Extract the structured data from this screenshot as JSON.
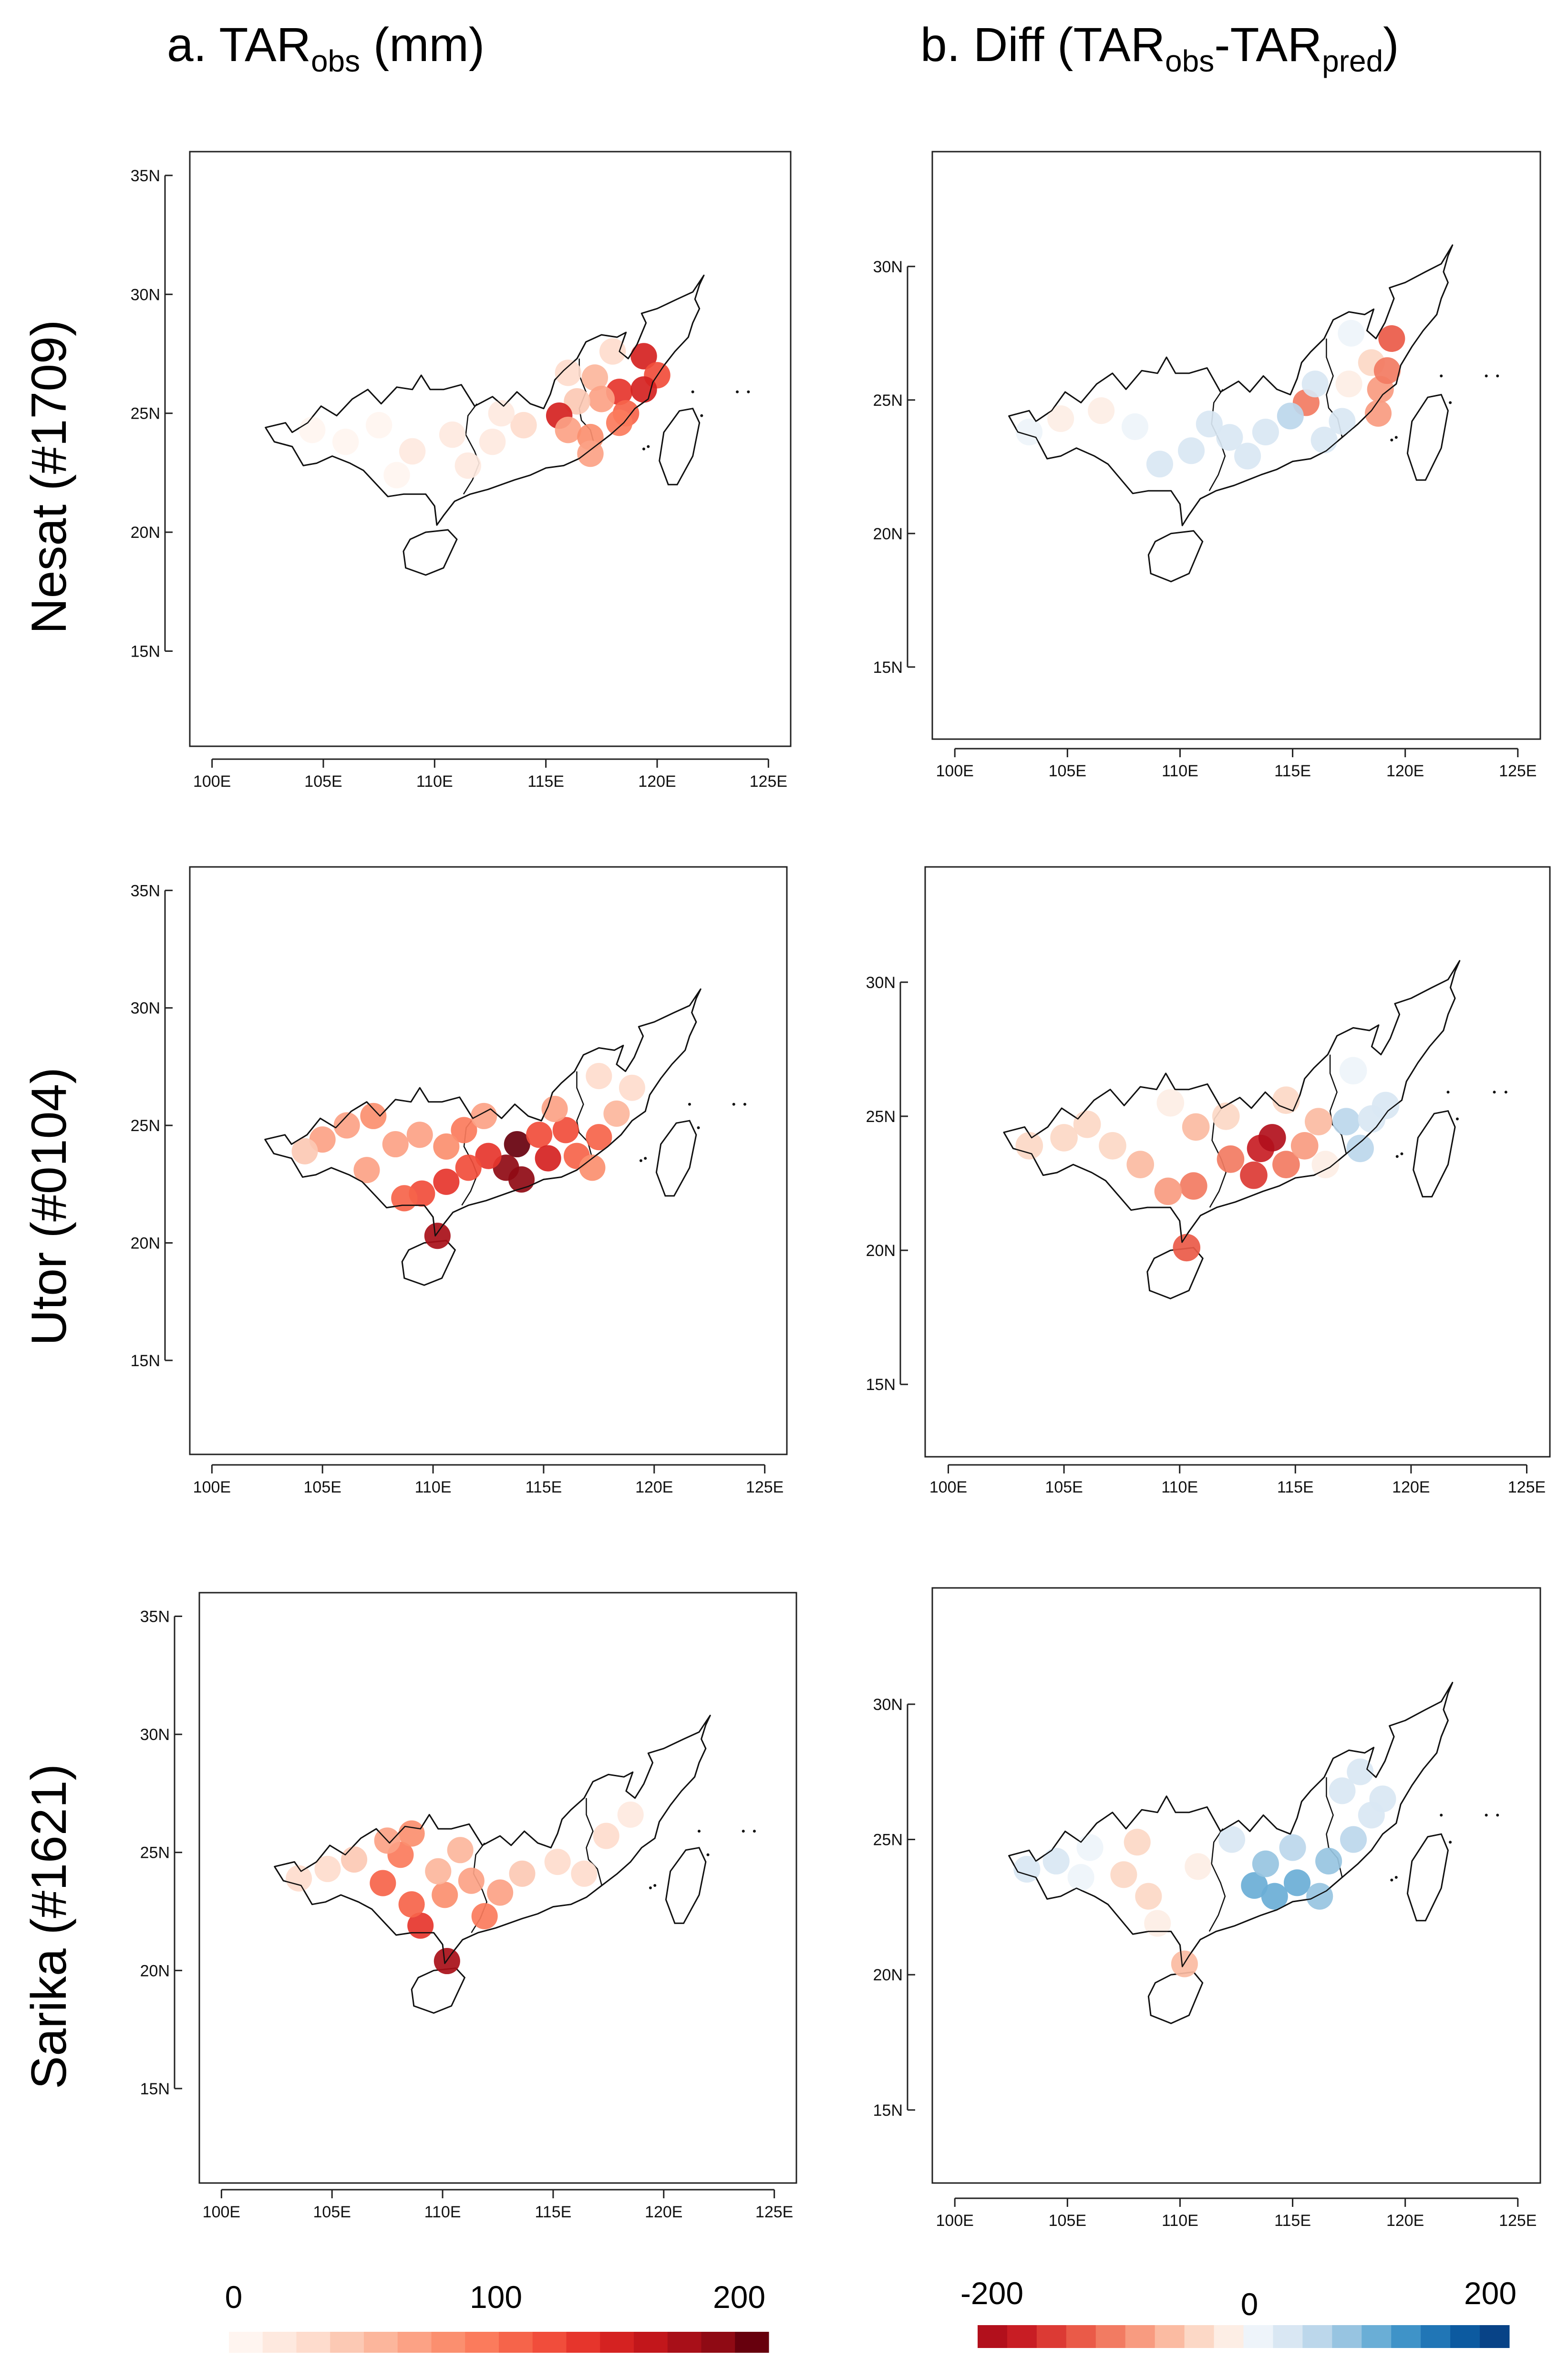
{
  "columns": {
    "a": {
      "prefix": "a. TAR",
      "sub": "obs",
      "suffix": " (mm)"
    },
    "b": {
      "prefix": "b. Diff (TAR",
      "sub1": "obs",
      "mid": "-TAR",
      "sub2": "pred",
      "suffix": ")"
    }
  },
  "rows": [
    {
      "label": "Nesat (#1709)"
    },
    {
      "label": "Utor (#0104)"
    },
    {
      "label": "Sarika (#1621)"
    }
  ],
  "axes": {
    "x_ticks": [
      "100E",
      "105E",
      "110E",
      "115E",
      "120E",
      "125E"
    ],
    "y_ticks_a": [
      "35N",
      "30N",
      "25N",
      "20N",
      "15N"
    ],
    "y_ticks_b": [
      "30N",
      "25N",
      "20N",
      "15N"
    ]
  },
  "legend_a": {
    "labels": [
      "0",
      "100",
      "200"
    ],
    "colors": [
      "#fff5f0",
      "#fee9df",
      "#fedccd",
      "#fcc9b4",
      "#fcb69c",
      "#fca285",
      "#fb8f6f",
      "#fb7b5c",
      "#f6644a",
      "#f14d3b",
      "#e6352c",
      "#d52221",
      "#c2161b",
      "#a80f18",
      "#8f0a14",
      "#67000d"
    ]
  },
  "legend_b": {
    "labels": [
      "-200",
      "0",
      "200"
    ],
    "colors": [
      "#b2101c",
      "#c81d24",
      "#dc3a34",
      "#ea5a48",
      "#f27b62",
      "#f89b80",
      "#fbbba2",
      "#fcd8c6",
      "#fdeee5",
      "#eef4fa",
      "#d9e7f3",
      "#bcd7eb",
      "#97c4e1",
      "#6aaed6",
      "#3f93c8",
      "#2176b6",
      "#0c5aa0",
      "#084387"
    ]
  },
  "chart_data": [
    {
      "panel": "a-nesat",
      "type": "scatter",
      "title": "a. TARobs (mm)",
      "row": "Nesat (#1709)",
      "xlim": [
        99,
        126
      ],
      "ylim": [
        11,
        36
      ],
      "points": [
        [
          119.4,
          27.4,
          140
        ],
        [
          120.0,
          26.6,
          120
        ],
        [
          118.3,
          25.9,
          130
        ],
        [
          119.4,
          26.0,
          140
        ],
        [
          118.6,
          25.0,
          110
        ],
        [
          117.2,
          26.5,
          50
        ],
        [
          117.5,
          25.6,
          60
        ],
        [
          116.4,
          25.5,
          40
        ],
        [
          115.6,
          24.9,
          140
        ],
        [
          116.0,
          24.3,
          60
        ],
        [
          117.0,
          24.0,
          80
        ],
        [
          118.3,
          24.6,
          90
        ],
        [
          117.0,
          23.3,
          70
        ],
        [
          114.0,
          24.5,
          20
        ],
        [
          112.6,
          23.8,
          15
        ],
        [
          110.8,
          24.1,
          10
        ],
        [
          109.0,
          23.4,
          8
        ],
        [
          107.5,
          24.5,
          6
        ],
        [
          106.0,
          23.8,
          6
        ],
        [
          104.5,
          24.3,
          5
        ],
        [
          113.0,
          25.0,
          12
        ],
        [
          111.5,
          22.8,
          8
        ],
        [
          108.3,
          22.4,
          5
        ],
        [
          116.0,
          26.7,
          30
        ],
        [
          118.0,
          27.6,
          25
        ]
      ]
    },
    {
      "panel": "b-nesat",
      "type": "scatter",
      "title": "b. Diff (TARobs-TARpred)",
      "row": "Nesat (#1709)",
      "xlim": [
        99,
        126
      ],
      "ylim": [
        12.3,
        34.3
      ],
      "points": [
        [
          119.4,
          27.3,
          -120
        ],
        [
          118.5,
          26.4,
          -40
        ],
        [
          117.5,
          25.6,
          -20
        ],
        [
          118.9,
          25.4,
          -80
        ],
        [
          119.2,
          26.1,
          -110
        ],
        [
          118.8,
          24.5,
          -90
        ],
        [
          115.6,
          24.9,
          -110
        ],
        [
          114.9,
          24.4,
          50
        ],
        [
          113.8,
          23.8,
          40
        ],
        [
          113.0,
          22.9,
          45
        ],
        [
          112.2,
          23.6,
          35
        ],
        [
          111.3,
          24.1,
          30
        ],
        [
          110.5,
          23.1,
          25
        ],
        [
          109.1,
          22.6,
          30
        ],
        [
          108.0,
          24.0,
          20
        ],
        [
          106.5,
          24.6,
          -20
        ],
        [
          104.7,
          24.3,
          -15
        ],
        [
          103.3,
          23.8,
          10
        ],
        [
          116.4,
          23.5,
          40
        ],
        [
          117.2,
          24.2,
          30
        ],
        [
          117.6,
          27.5,
          20
        ],
        [
          116.0,
          25.6,
          25
        ]
      ]
    },
    {
      "panel": "a-utor",
      "type": "scatter",
      "title": "a. TARobs (mm)",
      "row": "Utor (#0104)",
      "xlim": [
        99,
        126
      ],
      "ylim": [
        11,
        36
      ],
      "points": [
        [
          113.8,
          24.2,
          200
        ],
        [
          113.3,
          23.2,
          180
        ],
        [
          114.0,
          22.7,
          190
        ],
        [
          112.5,
          23.7,
          130
        ],
        [
          114.8,
          24.6,
          120
        ],
        [
          116.0,
          24.8,
          120
        ],
        [
          115.2,
          23.6,
          140
        ],
        [
          116.5,
          23.7,
          110
        ],
        [
          111.6,
          23.2,
          120
        ],
        [
          110.6,
          22.6,
          130
        ],
        [
          109.5,
          22.1,
          120
        ],
        [
          108.7,
          21.9,
          110
        ],
        [
          110.2,
          20.3,
          170
        ],
        [
          111.4,
          24.8,
          90
        ],
        [
          110.6,
          24.1,
          80
        ],
        [
          109.4,
          24.6,
          60
        ],
        [
          108.3,
          24.2,
          70
        ],
        [
          107.3,
          25.4,
          80
        ],
        [
          106.1,
          25.0,
          70
        ],
        [
          105.0,
          24.4,
          60
        ],
        [
          104.2,
          23.9,
          40
        ],
        [
          107.0,
          23.1,
          70
        ],
        [
          117.5,
          24.5,
          100
        ],
        [
          117.2,
          23.2,
          80
        ],
        [
          118.3,
          25.5,
          50
        ],
        [
          119.0,
          26.6,
          30
        ],
        [
          117.5,
          27.1,
          20
        ],
        [
          115.5,
          25.7,
          70
        ],
        [
          112.3,
          25.4,
          60
        ]
      ]
    },
    {
      "panel": "b-utor",
      "type": "scatter",
      "title": "b. Diff (TARobs-TARpred)",
      "row": "Utor (#0104)",
      "xlim": [
        99,
        126
      ],
      "ylim": [
        12.3,
        34.3
      ],
      "points": [
        [
          113.5,
          23.8,
          -180
        ],
        [
          114.0,
          24.2,
          -200
        ],
        [
          113.2,
          22.8,
          -150
        ],
        [
          112.2,
          23.4,
          -110
        ],
        [
          114.6,
          23.2,
          -100
        ],
        [
          115.4,
          23.9,
          -80
        ],
        [
          116.0,
          24.8,
          -60
        ],
        [
          110.3,
          20.1,
          -140
        ],
        [
          110.6,
          22.4,
          -110
        ],
        [
          109.5,
          22.2,
          -90
        ],
        [
          108.3,
          23.2,
          -60
        ],
        [
          107.1,
          23.9,
          -40
        ],
        [
          106.0,
          24.7,
          -30
        ],
        [
          105.0,
          24.2,
          -30
        ],
        [
          103.5,
          23.9,
          -40
        ],
        [
          110.7,
          24.6,
          -50
        ],
        [
          112.0,
          25.0,
          -30
        ],
        [
          109.6,
          25.5,
          -20
        ],
        [
          117.2,
          24.8,
          50
        ],
        [
          117.8,
          23.8,
          60
        ],
        [
          118.3,
          24.9,
          40
        ],
        [
          118.9,
          25.4,
          30
        ],
        [
          117.5,
          26.7,
          20
        ],
        [
          116.3,
          23.2,
          -20
        ],
        [
          114.6,
          25.6,
          -40
        ]
      ]
    },
    {
      "panel": "a-sarika",
      "type": "scatter",
      "title": "a. TARobs (mm)",
      "row": "Sarika (#1621)",
      "xlim": [
        99,
        126
      ],
      "ylim": [
        11,
        36
      ],
      "points": [
        [
          110.2,
          20.4,
          170
        ],
        [
          109.0,
          21.9,
          130
        ],
        [
          108.6,
          22.8,
          110
        ],
        [
          107.3,
          23.7,
          100
        ],
        [
          108.1,
          24.9,
          90
        ],
        [
          108.6,
          25.8,
          80
        ],
        [
          107.5,
          25.5,
          70
        ],
        [
          110.1,
          23.2,
          80
        ],
        [
          111.3,
          23.8,
          70
        ],
        [
          111.9,
          22.3,
          90
        ],
        [
          112.6,
          23.3,
          60
        ],
        [
          109.8,
          24.2,
          50
        ],
        [
          106.0,
          24.7,
          40
        ],
        [
          104.8,
          24.3,
          30
        ],
        [
          103.5,
          23.9,
          20
        ],
        [
          113.6,
          24.1,
          40
        ],
        [
          115.2,
          24.6,
          30
        ],
        [
          116.4,
          24.1,
          25
        ],
        [
          117.4,
          25.7,
          20
        ],
        [
          118.5,
          26.6,
          15
        ],
        [
          110.8,
          25.1,
          50
        ]
      ]
    },
    {
      "panel": "b-sarika",
      "type": "scatter",
      "title": "b. Diff (TARobs-TARpred)",
      "row": "Sarika (#1621)",
      "xlim": [
        99,
        126
      ],
      "ylim": [
        12.3,
        34.3
      ],
      "points": [
        [
          110.2,
          20.4,
          -60
        ],
        [
          109.0,
          21.9,
          -20
        ],
        [
          108.6,
          22.9,
          -40
        ],
        [
          107.5,
          23.7,
          -30
        ],
        [
          108.1,
          24.9,
          -40
        ],
        [
          106.0,
          24.7,
          20
        ],
        [
          104.5,
          24.2,
          30
        ],
        [
          103.2,
          23.9,
          40
        ],
        [
          113.3,
          23.3,
          100
        ],
        [
          114.2,
          22.9,
          110
        ],
        [
          115.2,
          23.4,
          100
        ],
        [
          116.2,
          22.9,
          90
        ],
        [
          113.8,
          24.1,
          80
        ],
        [
          115.0,
          24.7,
          70
        ],
        [
          116.6,
          24.2,
          80
        ],
        [
          117.7,
          25.0,
          50
        ],
        [
          118.5,
          25.9,
          40
        ],
        [
          117.2,
          26.8,
          30
        ],
        [
          119.0,
          26.5,
          35
        ],
        [
          112.3,
          25.0,
          30
        ],
        [
          110.8,
          24.0,
          -20
        ],
        [
          105.6,
          23.6,
          20
        ],
        [
          118.0,
          27.5,
          30
        ]
      ]
    }
  ]
}
